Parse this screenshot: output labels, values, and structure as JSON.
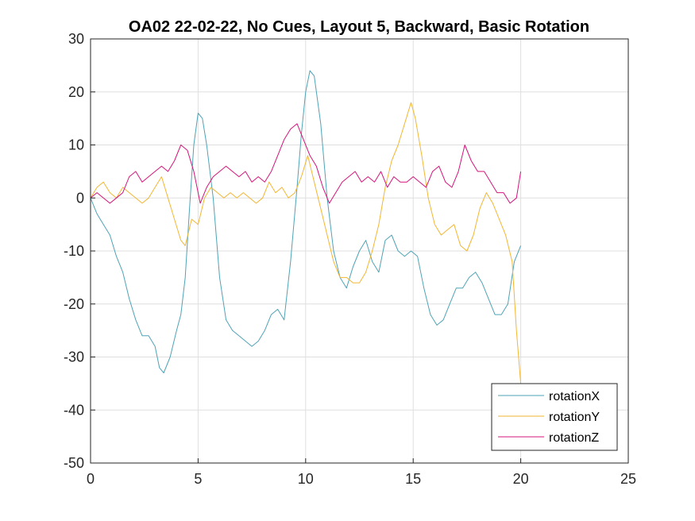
{
  "chart_data": {
    "type": "line",
    "title": "OA02 22-02-22, No Cues, Layout 5, Backward, Basic Rotation",
    "xlabel": "",
    "ylabel": "",
    "xlim": [
      0,
      25
    ],
    "ylim": [
      -50,
      30
    ],
    "xticks": [
      0,
      5,
      10,
      15,
      20,
      25
    ],
    "yticks": [
      30,
      20,
      10,
      0,
      -10,
      -20,
      -30,
      -40,
      -50
    ],
    "grid": true,
    "legend_position": "bottom-right",
    "series": [
      {
        "name": "rotationX",
        "color": "#4FA3B6",
        "x": [
          0,
          0.3,
          0.6,
          0.9,
          1.2,
          1.5,
          1.8,
          2.1,
          2.4,
          2.7,
          3.0,
          3.2,
          3.4,
          3.7,
          4.0,
          4.2,
          4.4,
          4.6,
          4.8,
          5.0,
          5.2,
          5.4,
          5.7,
          6.0,
          6.3,
          6.6,
          6.9,
          7.2,
          7.5,
          7.8,
          8.1,
          8.4,
          8.7,
          9.0,
          9.3,
          9.6,
          9.8,
          10.0,
          10.2,
          10.4,
          10.7,
          11.0,
          11.3,
          11.6,
          11.9,
          12.2,
          12.5,
          12.8,
          13.1,
          13.4,
          13.7,
          14.0,
          14.3,
          14.6,
          14.9,
          15.2,
          15.5,
          15.8,
          16.1,
          16.4,
          16.7,
          17.0,
          17.3,
          17.6,
          17.9,
          18.2,
          18.5,
          18.8,
          19.1,
          19.4,
          19.7,
          20.0
        ],
        "values": [
          0,
          -3,
          -5,
          -7,
          -11,
          -14,
          -19,
          -23,
          -26,
          -26,
          -28,
          -32,
          -33,
          -30,
          -25,
          -22,
          -15,
          -2,
          10,
          16,
          15,
          10,
          0,
          -15,
          -23,
          -25,
          -26,
          -27,
          -28,
          -27,
          -25,
          -22,
          -21,
          -23,
          -12,
          2,
          12,
          20,
          24,
          23,
          14,
          0,
          -10,
          -15,
          -17,
          -13,
          -10,
          -8,
          -12,
          -14,
          -8,
          -7,
          -10,
          -11,
          -10,
          -11,
          -17,
          -22,
          -24,
          -23,
          -20,
          -17,
          -17,
          -15,
          -14,
          -16,
          -19,
          -22,
          -22,
          -20,
          -12,
          -9
        ]
      },
      {
        "name": "rotationY",
        "color": "#F2B632",
        "x": [
          0,
          0.3,
          0.6,
          0.9,
          1.2,
          1.5,
          1.8,
          2.1,
          2.4,
          2.7,
          3.0,
          3.3,
          3.6,
          3.9,
          4.2,
          4.4,
          4.7,
          5.0,
          5.3,
          5.6,
          5.9,
          6.2,
          6.5,
          6.8,
          7.1,
          7.4,
          7.7,
          8.0,
          8.3,
          8.6,
          8.9,
          9.2,
          9.5,
          9.8,
          10.1,
          10.4,
          10.7,
          11.0,
          11.3,
          11.6,
          11.9,
          12.2,
          12.5,
          12.8,
          13.1,
          13.4,
          13.7,
          14.0,
          14.3,
          14.6,
          14.9,
          15.1,
          15.4,
          15.7,
          16.0,
          16.3,
          16.6,
          16.9,
          17.2,
          17.5,
          17.8,
          18.1,
          18.4,
          18.7,
          19.0,
          19.3,
          19.6,
          19.8,
          20.0
        ],
        "values": [
          0,
          2,
          3,
          1,
          0,
          2,
          1,
          0,
          -1,
          0,
          2,
          4,
          0,
          -4,
          -8,
          -9,
          -4,
          -5,
          0,
          2,
          1,
          0,
          1,
          0,
          1,
          0,
          -1,
          0,
          3,
          1,
          2,
          0,
          1,
          4,
          8,
          3,
          -2,
          -7,
          -12,
          -15,
          -15,
          -16,
          -16,
          -14,
          -10,
          -5,
          2,
          7,
          10,
          14,
          18,
          15,
          8,
          0,
          -5,
          -7,
          -6,
          -5,
          -9,
          -10,
          -7,
          -2,
          1,
          -1,
          -4,
          -7,
          -12,
          -25,
          -35
        ]
      },
      {
        "name": "rotationZ",
        "color": "#D4147A",
        "x": [
          0,
          0.3,
          0.6,
          0.9,
          1.2,
          1.5,
          1.8,
          2.1,
          2.4,
          2.7,
          3.0,
          3.3,
          3.6,
          3.9,
          4.2,
          4.5,
          4.8,
          5.1,
          5.4,
          5.7,
          6.0,
          6.3,
          6.6,
          6.9,
          7.2,
          7.5,
          7.8,
          8.1,
          8.4,
          8.7,
          9.0,
          9.3,
          9.6,
          9.9,
          10.2,
          10.5,
          10.8,
          11.1,
          11.4,
          11.7,
          12.0,
          12.3,
          12.6,
          12.9,
          13.2,
          13.5,
          13.8,
          14.1,
          14.4,
          14.7,
          15.0,
          15.3,
          15.6,
          15.9,
          16.2,
          16.5,
          16.8,
          17.1,
          17.4,
          17.7,
          18.0,
          18.3,
          18.6,
          18.9,
          19.2,
          19.5,
          19.8,
          20.0
        ],
        "values": [
          0,
          1,
          0,
          -1,
          0,
          1,
          4,
          5,
          3,
          4,
          5,
          6,
          5,
          7,
          10,
          9,
          5,
          -1,
          2,
          4,
          5,
          6,
          5,
          4,
          5,
          3,
          4,
          3,
          5,
          8,
          11,
          13,
          14,
          11,
          8,
          6,
          2,
          -1,
          1,
          3,
          4,
          5,
          3,
          4,
          3,
          5,
          2,
          4,
          3,
          3,
          4,
          3,
          2,
          5,
          6,
          3,
          2,
          5,
          10,
          7,
          5,
          5,
          3,
          1,
          1,
          -1,
          0,
          5
        ]
      }
    ]
  }
}
